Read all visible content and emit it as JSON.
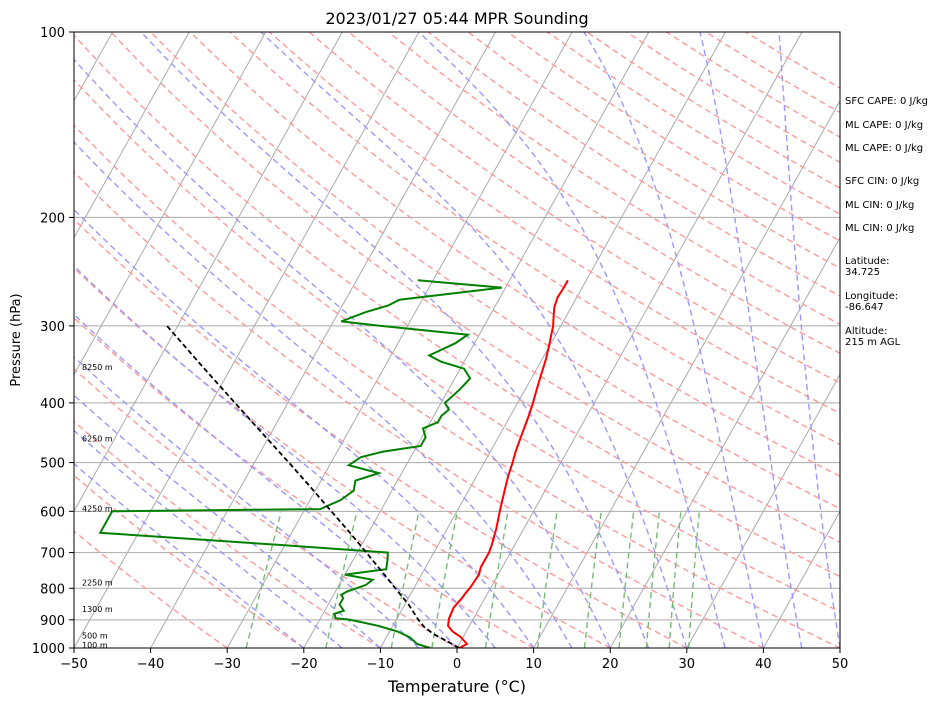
{
  "chart_data": {
    "type": "line",
    "title": "2023/01/27 05:44 MPR Sounding",
    "xlabel": "Temperature (°C)",
    "ylabel": "Pressure (hPa)",
    "xlim": [
      -50,
      50
    ],
    "ylim": [
      1000,
      100
    ],
    "y_scale": "log",
    "grid": true,
    "x_ticks": [
      "−50",
      "−40",
      "−30",
      "−20",
      "−10",
      "0",
      "10",
      "20",
      "30",
      "40",
      "50"
    ],
    "y_ticks": [
      {
        "p": 100,
        "label": "100"
      },
      {
        "p": 200,
        "label": "200"
      },
      {
        "p": 300,
        "label": "300"
      },
      {
        "p": 400,
        "label": "400"
      },
      {
        "p": 500,
        "label": "500"
      },
      {
        "p": 600,
        "label": "600"
      },
      {
        "p": 700,
        "label": "700"
      },
      {
        "p": 800,
        "label": "800"
      },
      {
        "p": 900,
        "label": "900"
      },
      {
        "p": 1000,
        "label": "1000"
      }
    ],
    "series": [
      {
        "key": "temperature",
        "color": "#ff0000",
        "points": [
          [
            1000,
            0.3
          ],
          [
            985,
            1.0
          ],
          [
            960,
            -0.3
          ],
          [
            940,
            -1.8
          ],
          [
            920,
            -2.8
          ],
          [
            895,
            -3.2
          ],
          [
            875,
            -3.3
          ],
          [
            860,
            -3.4
          ],
          [
            845,
            -3.2
          ],
          [
            830,
            -3.0
          ],
          [
            815,
            -2.9
          ],
          [
            800,
            -2.7
          ],
          [
            780,
            -2.6
          ],
          [
            760,
            -2.5
          ],
          [
            740,
            -2.8
          ],
          [
            720,
            -2.8
          ],
          [
            700,
            -2.8
          ],
          [
            680,
            -3.0
          ],
          [
            660,
            -3.3
          ],
          [
            640,
            -3.6
          ],
          [
            620,
            -4.0
          ],
          [
            600,
            -4.4
          ],
          [
            575,
            -4.9
          ],
          [
            550,
            -5.4
          ],
          [
            525,
            -5.9
          ],
          [
            500,
            -6.3
          ],
          [
            480,
            -6.7
          ],
          [
            460,
            -7.0
          ],
          [
            440,
            -7.3
          ],
          [
            420,
            -7.6
          ],
          [
            400,
            -8.0
          ],
          [
            380,
            -8.5
          ],
          [
            360,
            -9.0
          ],
          [
            340,
            -9.5
          ],
          [
            320,
            -10.2
          ],
          [
            300,
            -11.0
          ],
          [
            290,
            -11.6
          ],
          [
            280,
            -12.2
          ],
          [
            270,
            -12.5
          ],
          [
            260,
            -12.4
          ],
          [
            253,
            -12.4
          ]
        ]
      },
      {
        "key": "dewpoint",
        "color": "#008000",
        "points": [
          [
            1000,
            -3.5
          ],
          [
            985,
            -5.5
          ],
          [
            960,
            -7.0
          ],
          [
            940,
            -9.0
          ],
          [
            920,
            -12.0
          ],
          [
            900,
            -16.0
          ],
          [
            895,
            -18.0
          ],
          [
            880,
            -18.5
          ],
          [
            870,
            -17.5
          ],
          [
            860,
            -18.0
          ],
          [
            850,
            -18.5
          ],
          [
            830,
            -18.5
          ],
          [
            820,
            -19.0
          ],
          [
            810,
            -18.5
          ],
          [
            800,
            -17.5
          ],
          [
            790,
            -16.5
          ],
          [
            775,
            -16.0
          ],
          [
            760,
            -20.0
          ],
          [
            745,
            -15.0
          ],
          [
            720,
            -15.5
          ],
          [
            700,
            -16.0
          ],
          [
            680,
            -31.0
          ],
          [
            650,
            -55.0
          ],
          [
            600,
            -55.0
          ],
          [
            595,
            -28.0
          ],
          [
            590,
            -27.5
          ],
          [
            575,
            -26.0
          ],
          [
            555,
            -25.0
          ],
          [
            535,
            -25.5
          ],
          [
            520,
            -23.0
          ],
          [
            505,
            -27.5
          ],
          [
            490,
            -26.5
          ],
          [
            480,
            -24.0
          ],
          [
            470,
            -19.5
          ],
          [
            455,
            -19.5
          ],
          [
            440,
            -20.5
          ],
          [
            430,
            -19.0
          ],
          [
            420,
            -19.0
          ],
          [
            410,
            -18.5
          ],
          [
            400,
            -19.5
          ],
          [
            380,
            -18.5
          ],
          [
            365,
            -18.0
          ],
          [
            352,
            -19.5
          ],
          [
            343,
            -23.0
          ],
          [
            335,
            -25.0
          ],
          [
            320,
            -22.5
          ],
          [
            310,
            -21.5
          ],
          [
            300,
            -33.5
          ],
          [
            295,
            -39.0
          ],
          [
            285,
            -36.5
          ],
          [
            278,
            -34.0
          ],
          [
            272,
            -33.0
          ],
          [
            260,
            -20.5
          ],
          [
            253,
            -32.0
          ]
        ]
      },
      {
        "key": "parcel",
        "color": "#000000",
        "dash": true,
        "points": [
          [
            1000,
            0.3
          ],
          [
            975,
            -1.8
          ],
          [
            950,
            -4.0
          ],
          [
            925,
            -5.8
          ],
          [
            900,
            -7.1
          ],
          [
            850,
            -9.5
          ],
          [
            800,
            -12.4
          ],
          [
            750,
            -15.5
          ],
          [
            700,
            -18.8
          ],
          [
            650,
            -22.4
          ],
          [
            600,
            -26.4
          ],
          [
            550,
            -30.7
          ],
          [
            500,
            -35.5
          ],
          [
            450,
            -40.9
          ],
          [
            400,
            -46.9
          ],
          [
            350,
            -53.7
          ],
          [
            300,
            -61.4
          ]
        ]
      }
    ],
    "height_labels": [
      {
        "p": 988,
        "label": "100 m"
      },
      {
        "p": 955,
        "label": "500 m"
      },
      {
        "p": 865,
        "label": "1300 m"
      },
      {
        "p": 783,
        "label": "2250 m"
      },
      {
        "p": 594,
        "label": "4250 m"
      },
      {
        "p": 457,
        "label": "6250 m"
      },
      {
        "p": 350,
        "label": "8250 m"
      }
    ]
  },
  "side_panel": [
    "SFC CAPE: 0 J/kg",
    "ML CAPE: 0 J/kg",
    "ML CAPE: 0 J/kg",
    "SFC CIN: 0 J/kg",
    "ML CIN: 0 J/kg",
    "ML CIN: 0 J/kg",
    "Latitude:",
    "34.725",
    "Longitude:",
    "-86.647",
    "Altitude:",
    "215 m AGL"
  ],
  "colors": {
    "isotherm": "#aaaaaa",
    "isobar": "#aaaaaa",
    "dry_adiabat": "#ff9999",
    "moist_adiabat": "#9999ff",
    "mixing_ratio": "#77bb77"
  }
}
